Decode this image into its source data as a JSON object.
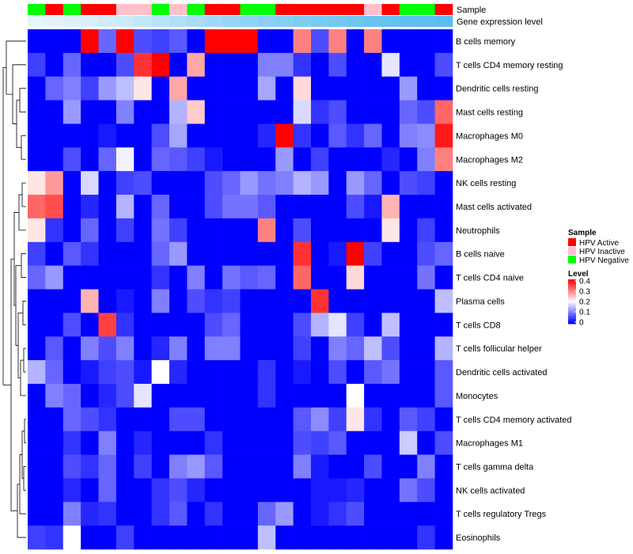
{
  "chart_data": {
    "type": "heatmap",
    "title": "",
    "column_annotations": [
      {
        "name": "Sample",
        "values": [
          "HPV Negative",
          "HPV Active",
          "HPV Negative",
          "HPV Active",
          "HPV Active",
          "HPV Inactive",
          "HPV Inactive",
          "HPV Negative",
          "HPV Inactive",
          "HPV Negative",
          "HPV Active",
          "HPV Active",
          "HPV Negative",
          "HPV Negative",
          "HPV Active",
          "HPV Active",
          "HPV Active",
          "HPV Active",
          "HPV Active",
          "HPV Inactive",
          "HPV Active",
          "HPV Negative",
          "HPV Negative",
          "HPV Active"
        ]
      },
      {
        "name": "Gene expression level",
        "values": [
          0.02,
          0.05,
          0.08,
          0.12,
          0.18,
          0.22,
          0.28,
          0.34,
          0.4,
          0.46,
          0.52,
          0.58,
          0.62,
          0.66,
          0.7,
          0.74,
          0.78,
          0.82,
          0.86,
          0.9,
          0.93,
          0.96,
          0.98,
          1.0
        ]
      }
    ],
    "rows": [
      "B cells memory",
      "T cells CD4 memory resting",
      "Dendritic cells resting",
      "Mast cells resting",
      "Macrophages M0",
      "Macrophages M2",
      "NK cells resting",
      "Mast cells activated",
      "Neutrophils",
      "B cells naive",
      "T cells CD4 naive",
      "Plasma cells",
      "T cells CD8",
      "T cells follicular helper",
      "Dendritic cells activated",
      "Monocytes",
      "T cells CD4 memory activated",
      "Macrophages M1",
      "T cells gamma delta",
      "NK cells activated",
      "T cells regulatory  Tregs",
      "Eosinophils"
    ],
    "values": [
      [
        0,
        0,
        0,
        0.4,
        0.08,
        0.4,
        0.06,
        0.05,
        0.07,
        0,
        0.4,
        0.4,
        0.4,
        0,
        0,
        0.3,
        0.06,
        0.3,
        0,
        0.3,
        0,
        0,
        0,
        0
      ],
      [
        0.05,
        0,
        0.08,
        0,
        0,
        0.06,
        0.36,
        0.4,
        0,
        0.27,
        0,
        0,
        0,
        0.1,
        0.1,
        0.04,
        0,
        0.06,
        0,
        0,
        0.18,
        0,
        0,
        0.06
      ],
      [
        0,
        0.08,
        0.1,
        0.05,
        0.12,
        0.15,
        0.22,
        0,
        0.27,
        0,
        0,
        0,
        0,
        0.13,
        0,
        0.23,
        0,
        0,
        0,
        0,
        0,
        0.12,
        0,
        0
      ],
      [
        0,
        0,
        0.12,
        0,
        0,
        0.1,
        0,
        0,
        0.14,
        0.24,
        0,
        0,
        0,
        0,
        0,
        0.17,
        0.04,
        0.06,
        0,
        0,
        0,
        0.08,
        0.06,
        0.32
      ],
      [
        0,
        0,
        0,
        0,
        0.02,
        0,
        0,
        0.06,
        0.13,
        0,
        0,
        0,
        0,
        0.03,
        0.4,
        0.04,
        0,
        0.07,
        0.04,
        0.08,
        0,
        0.1,
        0.11,
        0.38
      ],
      [
        0,
        0,
        0.06,
        0,
        0.08,
        0.19,
        0,
        0.08,
        0.07,
        0.05,
        0.02,
        0,
        0,
        0,
        0.12,
        0,
        0.05,
        0,
        0,
        0,
        0.03,
        0,
        0.1,
        0.3
      ],
      [
        0.22,
        0.28,
        0,
        0.17,
        0,
        0.05,
        0.06,
        0,
        0,
        0,
        0.06,
        0.08,
        0.12,
        0.09,
        0.1,
        0.14,
        0.12,
        0,
        0.12,
        0.08,
        0,
        0.06,
        0.05,
        0
      ],
      [
        0.32,
        0.34,
        0,
        0.03,
        0,
        0.14,
        0,
        0.08,
        0,
        0,
        0.06,
        0.09,
        0.09,
        0.07,
        0,
        0,
        0,
        0,
        0.06,
        0.02,
        0.26,
        0,
        0,
        0
      ],
      [
        0.22,
        0.04,
        0,
        0.08,
        0,
        0.05,
        0,
        0.09,
        0.05,
        0,
        0,
        0,
        0,
        0.3,
        0,
        0.06,
        0,
        0,
        0,
        0,
        0.22,
        0,
        0.05,
        0
      ],
      [
        0.05,
        0,
        0.07,
        0.04,
        0,
        0,
        0,
        0.08,
        0.12,
        0,
        0,
        0,
        0,
        0,
        0,
        0.36,
        0,
        0.02,
        0.4,
        0.05,
        0,
        0,
        0.06,
        0.08
      ],
      [
        0.08,
        0.12,
        0,
        0,
        0,
        0,
        0,
        0.04,
        0,
        0.1,
        0,
        0.09,
        0.07,
        0.08,
        0,
        0.32,
        0,
        0,
        0.23,
        0,
        0,
        0,
        0.09,
        0
      ],
      [
        0,
        0,
        0,
        0.26,
        0,
        0.02,
        0,
        0.1,
        0,
        0.06,
        0.04,
        0.05,
        0,
        0,
        0,
        0,
        0.36,
        0,
        0,
        0,
        0,
        0,
        0,
        0.15
      ],
      [
        0,
        0,
        0.06,
        0,
        0.35,
        0.04,
        0,
        0,
        0,
        0,
        0.06,
        0.08,
        0,
        0,
        0,
        0.06,
        0.14,
        0.18,
        0.05,
        0,
        0.15,
        0,
        0,
        0
      ],
      [
        0,
        0.07,
        0,
        0.1,
        0.06,
        0.1,
        0,
        0.03,
        0.1,
        0,
        0.1,
        0.1,
        0,
        0,
        0,
        0.05,
        0,
        0.1,
        0.08,
        0.15,
        0.06,
        0,
        0,
        0.14
      ],
      [
        0.14,
        0.08,
        0,
        0.02,
        0.05,
        0.06,
        0.02,
        0.2,
        0.03,
        0,
        0,
        0,
        0,
        0.04,
        0,
        0.02,
        0,
        0.06,
        0,
        0.07,
        0.09,
        0,
        0,
        0.07
      ],
      [
        0,
        0.1,
        0.08,
        0,
        0.03,
        0.06,
        0.18,
        0,
        0,
        0,
        0,
        0,
        0,
        0.04,
        0,
        0,
        0,
        0,
        0.2,
        0,
        0,
        0,
        0,
        0.07
      ],
      [
        0,
        0,
        0.08,
        0.06,
        0.04,
        0,
        0,
        0,
        0.06,
        0.06,
        0,
        0,
        0,
        0,
        0,
        0.07,
        0.11,
        0.05,
        0.22,
        0.04,
        0,
        0.07,
        0.05,
        0
      ],
      [
        0,
        0,
        0.04,
        0,
        0.1,
        0,
        0.03,
        0,
        0,
        0,
        0.04,
        0,
        0,
        0,
        0,
        0.06,
        0.05,
        0.07,
        0,
        0,
        0,
        0.16,
        0,
        0.06
      ],
      [
        0,
        0,
        0.06,
        0.04,
        0.08,
        0,
        0.05,
        0,
        0.1,
        0.12,
        0.07,
        0,
        0,
        0,
        0,
        0.1,
        0.02,
        0,
        0,
        0.06,
        0,
        0,
        0.1,
        0
      ],
      [
        0,
        0,
        0.03,
        0,
        0.08,
        0,
        0,
        0.04,
        0.06,
        0.03,
        0,
        0,
        0,
        0,
        0,
        0,
        0.02,
        0.02,
        0.03,
        0,
        0,
        0.09,
        0.06,
        0
      ],
      [
        0,
        0,
        0.1,
        0.03,
        0.04,
        0,
        0,
        0.04,
        0.07,
        0,
        0.04,
        0,
        0,
        0.08,
        0.12,
        0,
        0.02,
        0.04,
        0.06,
        0,
        0,
        0,
        0,
        0
      ],
      [
        0.05,
        0.04,
        0.2,
        0,
        0,
        0.05,
        0,
        0,
        0,
        0,
        0,
        0,
        0,
        0.15,
        0,
        0,
        0,
        0,
        0,
        0,
        0,
        0,
        0.04,
        0
      ]
    ],
    "color_scale": {
      "min": 0,
      "max": 0.4,
      "low_color": "#0000FF",
      "mid_color": "#FFFFFF",
      "high_color": "#FF0000"
    },
    "annotation_colors": {
      "HPV Active": "#FF0000",
      "HPV Inactive": "#FFC0CB",
      "HPV Negative": "#00FF00"
    },
    "gene_expression_scale": {
      "low_color": "#EAF6FD",
      "high_color": "#5BBEF0"
    },
    "legend": {
      "sample_title": "Sample",
      "sample_entries": [
        "HPV Active",
        "HPV Inactive",
        "HPV Negative"
      ],
      "level_title": "Level",
      "level_ticks": [
        "0.4",
        "0.3",
        "0.2",
        "0.1",
        "0"
      ],
      "level_tick_values": [
        0.4,
        0.3,
        0.2,
        0.1,
        0
      ]
    },
    "dendrogram": {
      "side": "left",
      "cluster": "rows"
    }
  }
}
